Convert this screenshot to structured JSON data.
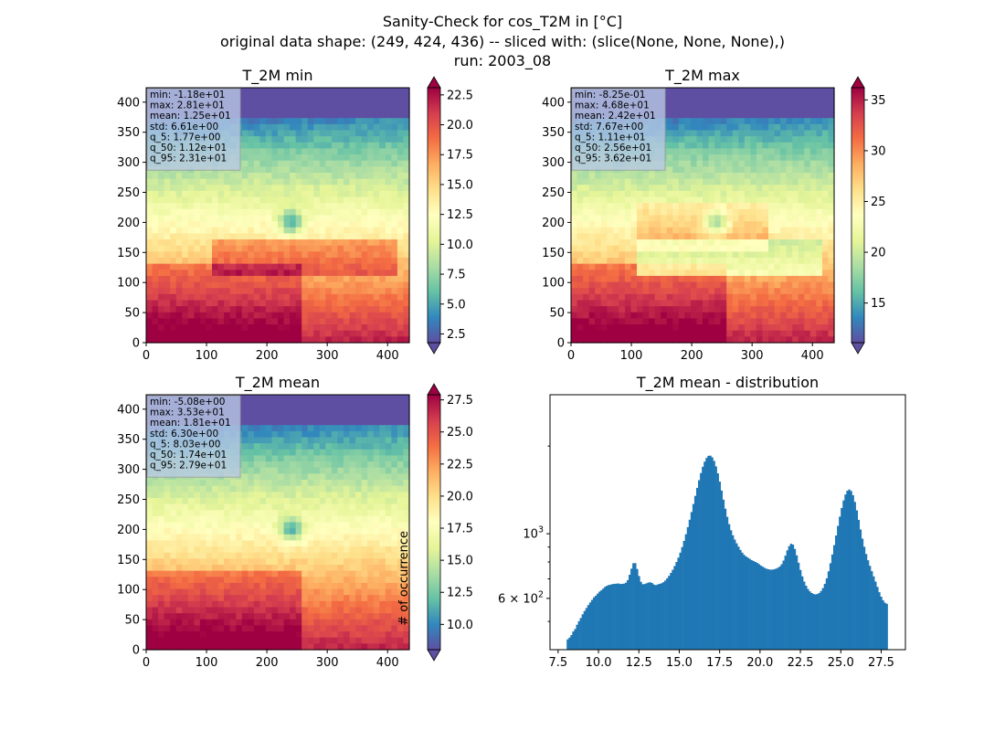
{
  "figure": {
    "title_lines": [
      "Sanity-Check for cos_T2M in [°C]",
      "original data shape: (249, 424, 436) -- sliced with: (slice(None, None, None),)",
      "run: 2003_08"
    ]
  },
  "colors": {
    "spectral_r": [
      "#5e4fa2",
      "#3288bd",
      "#66c2a5",
      "#abdda4",
      "#e6f598",
      "#ffffbf",
      "#fee08b",
      "#fdae61",
      "#f46d43",
      "#d53e4f",
      "#9e0142"
    ],
    "histogram_bar": "#1f77b4",
    "stats_box_bg": "#b9c9e6"
  },
  "chart_data": [
    {
      "type": "heatmap",
      "id": "min",
      "title": "T_2M min",
      "colormap": "Spectral_r",
      "xlim": [
        0,
        436
      ],
      "ylim": [
        0,
        424
      ],
      "x_ticks": [
        "0",
        "100",
        "200",
        "300",
        "400"
      ],
      "y_ticks": [
        "0",
        "50",
        "100",
        "150",
        "200",
        "250",
        "300",
        "350",
        "400"
      ],
      "colorbar": {
        "range": [
          1.77,
          23.1
        ],
        "ticks": [
          "2.5",
          "5.0",
          "7.5",
          "10.0",
          "12.5",
          "15.0",
          "17.5",
          "20.0",
          "22.5"
        ],
        "label": "",
        "extend": "both"
      },
      "stats": [
        "min: -1.18e+01",
        "max: 2.81e+01",
        "mean: 1.25e+01",
        "std: 6.61e+00",
        "q_5: 1.77e+00",
        "q_50: 1.12e+01",
        "q_95: 2.31e+01"
      ]
    },
    {
      "type": "heatmap",
      "id": "max",
      "title": "T_2M max",
      "colormap": "Spectral_r",
      "xlim": [
        0,
        436
      ],
      "ylim": [
        0,
        424
      ],
      "x_ticks": [
        "0",
        "100",
        "200",
        "300",
        "400"
      ],
      "y_ticks": [
        "0",
        "50",
        "100",
        "150",
        "200",
        "250",
        "300",
        "350",
        "400"
      ],
      "colorbar": {
        "range": [
          11.1,
          36.2
        ],
        "ticks": [
          "15",
          "20",
          "25",
          "30",
          "35"
        ],
        "label": "",
        "extend": "both"
      },
      "stats": [
        "min: -8.25e-01",
        "max: 4.68e+01",
        "mean: 2.42e+01",
        "std: 7.67e+00",
        "q_5: 1.11e+01",
        "q_50: 2.56e+01",
        "q_95: 3.62e+01"
      ]
    },
    {
      "type": "heatmap",
      "id": "mean",
      "title": "T_2M mean",
      "colormap": "Spectral_r",
      "xlim": [
        0,
        436
      ],
      "ylim": [
        0,
        424
      ],
      "x_ticks": [
        "0",
        "100",
        "200",
        "300",
        "400"
      ],
      "y_ticks": [
        "0",
        "50",
        "100",
        "150",
        "200",
        "250",
        "300",
        "350",
        "400"
      ],
      "colorbar": {
        "range": [
          8.03,
          27.9
        ],
        "ticks": [
          "10.0",
          "12.5",
          "15.0",
          "17.5",
          "20.0",
          "22.5",
          "25.0",
          "27.5"
        ],
        "label": "# of occurrence",
        "extend": "both"
      },
      "stats": [
        "min: -5.08e+00",
        "max: 3.53e+01",
        "mean: 1.81e+01",
        "std: 6.30e+00",
        "q_5: 8.03e+00",
        "q_50: 1.74e+01",
        "q_95: 2.79e+01"
      ]
    },
    {
      "type": "bar",
      "id": "hist",
      "title": "T_2M mean - distribution",
      "xlabel": "",
      "ylabel": "",
      "y_scale": "log",
      "xlim": [
        7.0,
        29.0
      ],
      "ylim": [
        400,
        3000
      ],
      "x_ticks": [
        "7.5",
        "10.0",
        "12.5",
        "15.0",
        "17.5",
        "20.0",
        "22.5",
        "25.0",
        "27.5"
      ],
      "y_tick_labels": [
        "10^3",
        "6 × 10^2"
      ],
      "y_tick_values": [
        1000,
        600
      ],
      "bin_range": [
        8.03,
        27.9
      ],
      "counts": [
        434,
        440,
        449,
        462,
        471,
        487,
        501,
        514,
        529,
        543,
        556,
        569,
        581,
        593,
        605,
        613,
        623,
        633,
        640,
        649,
        658,
        663,
        667,
        669,
        672,
        673,
        674,
        675,
        672,
        673,
        674,
        679,
        693,
        723,
        759,
        792,
        793,
        757,
        716,
        684,
        671,
        672,
        676,
        680,
        681,
        677,
        669,
        666,
        670,
        673,
        676,
        682,
        691,
        703,
        717,
        734,
        752,
        775,
        800,
        828,
        861,
        900,
        945,
        996,
        1053,
        1117,
        1187,
        1265,
        1349,
        1437,
        1527,
        1615,
        1698,
        1768,
        1821,
        1851,
        1854,
        1829,
        1778,
        1703,
        1612,
        1510,
        1407,
        1309,
        1219,
        1143,
        1079,
        1028,
        988,
        955,
        927,
        903,
        880,
        861,
        846,
        836,
        828,
        820,
        812,
        806,
        800,
        794,
        786,
        777,
        770,
        763,
        758,
        755,
        753,
        753,
        755,
        759,
        764,
        772,
        786,
        809,
        841,
        877,
        907,
        924,
        918,
        887,
        843,
        795,
        751,
        714,
        685,
        663,
        646,
        634,
        626,
        621,
        619,
        621,
        626,
        636,
        651,
        673,
        703,
        743,
        792,
        849,
        914,
        986,
        1064,
        1145,
        1226,
        1301,
        1364,
        1405,
        1419,
        1402,
        1356,
        1286,
        1203,
        1116,
        1034,
        962,
        902,
        852,
        811,
        776,
        744,
        714,
        685,
        657,
        630,
        608,
        591,
        580,
        575
      ]
    }
  ]
}
